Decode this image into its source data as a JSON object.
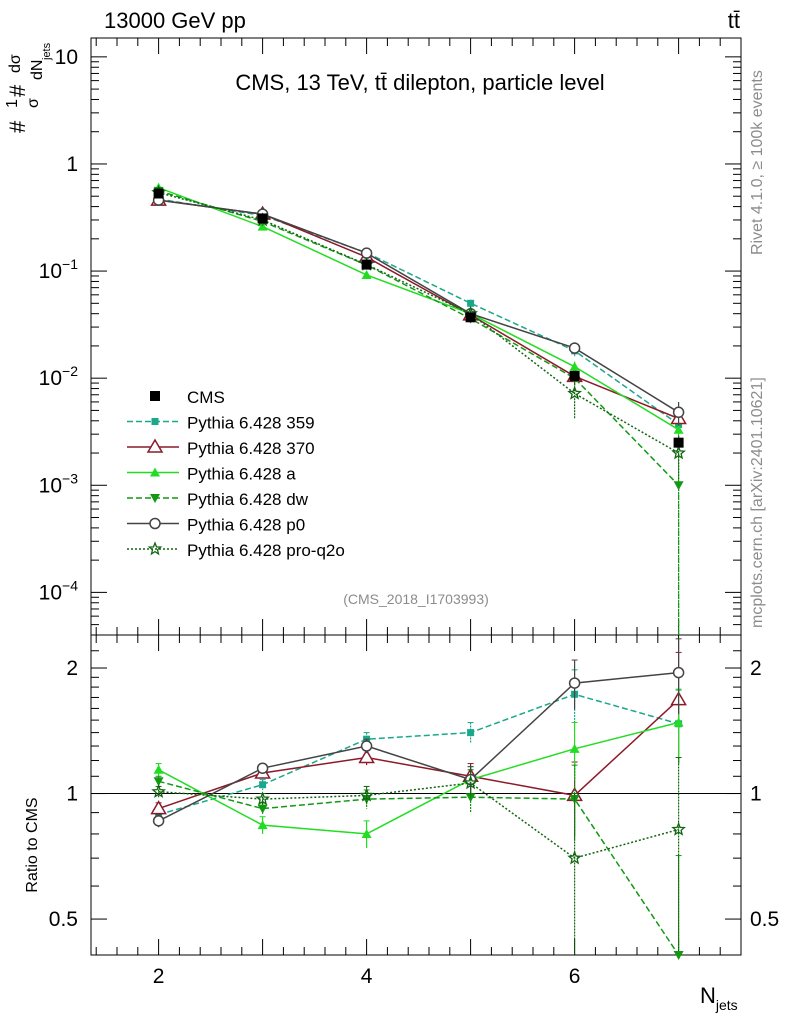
{
  "header": {
    "energy_label": "13000 GeV pp",
    "process_label": "tt̄",
    "plot_title": "CMS, 13 TeV, tt̄ dilepton, particle level",
    "analysis_id": "(CMS_2018_I1703993)",
    "side_rivet": "Rivet 4.1.0, ≥ 100k events",
    "side_mcplots": "mcplots.cern.ch [arXiv:2401.10621]"
  },
  "colors": {
    "cms": "#000000",
    "p359": "#1aa88a",
    "p370": "#8b1a2b",
    "pa": "#22dd22",
    "pdw": "#119911",
    "pp0": "#444444",
    "pq2o": "#116611"
  },
  "chart_data": [
    {
      "type": "line",
      "name": "main",
      "ylabel_parts": [
        "#",
        "1",
        "σ",
        "#",
        "dσ",
        "dN",
        "jets"
      ],
      "yscale": "log",
      "ylim": [
        4e-05,
        15
      ],
      "xlim": [
        1.35,
        7.6
      ],
      "yticks": [
        {
          "v": 10,
          "base": "10",
          "exp": ""
        },
        {
          "v": 1,
          "base": "1",
          "exp": ""
        },
        {
          "v": 0.1,
          "base": "10",
          "exp": "−1"
        },
        {
          "v": 0.01,
          "base": "10",
          "exp": "−2"
        },
        {
          "v": 0.001,
          "base": "10",
          "exp": "−3"
        },
        {
          "v": 0.0001,
          "base": "10",
          "exp": "−4"
        }
      ],
      "x": [
        2,
        3,
        4,
        5,
        6,
        7
      ],
      "cms": {
        "name": "CMS",
        "values": [
          0.53,
          0.31,
          0.115,
          0.037,
          0.0105,
          0.0025
        ]
      },
      "series": [
        {
          "key": "p359",
          "name": "Pythia 6.428 359",
          "values": [
            0.47,
            0.33,
            0.148,
            0.05,
            0.018,
            0.0037
          ],
          "err": [
            0.02,
            0.01,
            0.006,
            0.004,
            0.002,
            0.0006
          ]
        },
        {
          "key": "p370",
          "name": "Pythia 6.428 370",
          "values": [
            0.46,
            0.34,
            0.135,
            0.039,
            0.0104,
            0.0042
          ],
          "err": [
            0.02,
            0.01,
            0.006,
            0.003,
            0.0015,
            0.0008
          ]
        },
        {
          "key": "pa",
          "name": "Pythia 6.428 a",
          "values": [
            0.6,
            0.26,
            0.092,
            0.04,
            0.0128,
            0.0033
          ],
          "err": [
            0.02,
            0.01,
            0.005,
            0.003,
            0.0015,
            0.0006
          ]
        },
        {
          "key": "pdw",
          "name": "Pythia 6.428 dw",
          "values": [
            0.56,
            0.29,
            0.114,
            0.036,
            0.01,
            0.001
          ],
          "err": [
            0.02,
            0.01,
            0.005,
            0.003,
            0.0015,
            0.001
          ]
        },
        {
          "key": "pp0",
          "name": "Pythia 6.428 p0",
          "values": [
            0.46,
            0.34,
            0.147,
            0.04,
            0.0191,
            0.0048
          ],
          "err": [
            0.02,
            0.01,
            0.006,
            0.003,
            0.0025,
            0.0012
          ]
        },
        {
          "key": "pq2o",
          "name": "Pythia 6.428 pro-q2o",
          "values": [
            0.54,
            0.3,
            0.115,
            0.04,
            0.0072,
            0.002
          ],
          "err": [
            0.02,
            0.01,
            0.006,
            0.003,
            0.003,
            0.0009
          ]
        }
      ]
    },
    {
      "type": "line",
      "name": "ratio",
      "ylabel": "Ratio to CMS",
      "xlabel_base": "N",
      "xlabel_sub": "jets",
      "yscale": "log",
      "ylim": [
        0.41,
        2.4
      ],
      "xlim": [
        1.35,
        7.6
      ],
      "yticks": [
        {
          "v": 2,
          "label": "2"
        },
        {
          "v": 1,
          "label": "1"
        },
        {
          "v": 0.5,
          "label": "0.5"
        }
      ],
      "xticks": [
        {
          "v": 2,
          "label": "2"
        },
        {
          "v": 4,
          "label": "4"
        },
        {
          "v": 6,
          "label": "6"
        }
      ],
      "x": [
        2,
        3,
        4,
        5,
        6,
        7
      ],
      "series": [
        {
          "key": "p359",
          "values": [
            0.89,
            1.05,
            1.35,
            1.4,
            1.73,
            1.47
          ],
          "err": [
            0.03,
            0.03,
            0.05,
            0.08,
            0.25,
            0.3
          ]
        },
        {
          "key": "p370",
          "values": [
            0.92,
            1.12,
            1.22,
            1.1,
            0.99,
            1.68
          ],
          "err": [
            0.03,
            0.03,
            0.05,
            0.08,
            0.2,
            0.5
          ]
        },
        {
          "key": "pa",
          "values": [
            1.14,
            0.84,
            0.8,
            1.08,
            1.28,
            1.48
          ],
          "err": [
            0.04,
            0.04,
            0.06,
            0.08,
            0.2,
            0.3
          ]
        },
        {
          "key": "pdw",
          "values": [
            1.07,
            0.92,
            0.97,
            0.98,
            0.97,
            0.41
          ],
          "err": [
            0.03,
            0.03,
            0.05,
            0.08,
            0.2,
            0.3
          ]
        },
        {
          "key": "pp0",
          "values": [
            0.86,
            1.15,
            1.3,
            1.08,
            1.84,
            1.95
          ],
          "err": [
            0.03,
            0.03,
            0.05,
            0.08,
            0.25,
            0.4
          ]
        },
        {
          "key": "pq2o",
          "values": [
            1.01,
            0.97,
            0.99,
            1.06,
            0.7,
            0.82
          ],
          "err": [
            0.03,
            0.03,
            0.05,
            0.08,
            0.3,
            0.4
          ]
        }
      ]
    }
  ]
}
